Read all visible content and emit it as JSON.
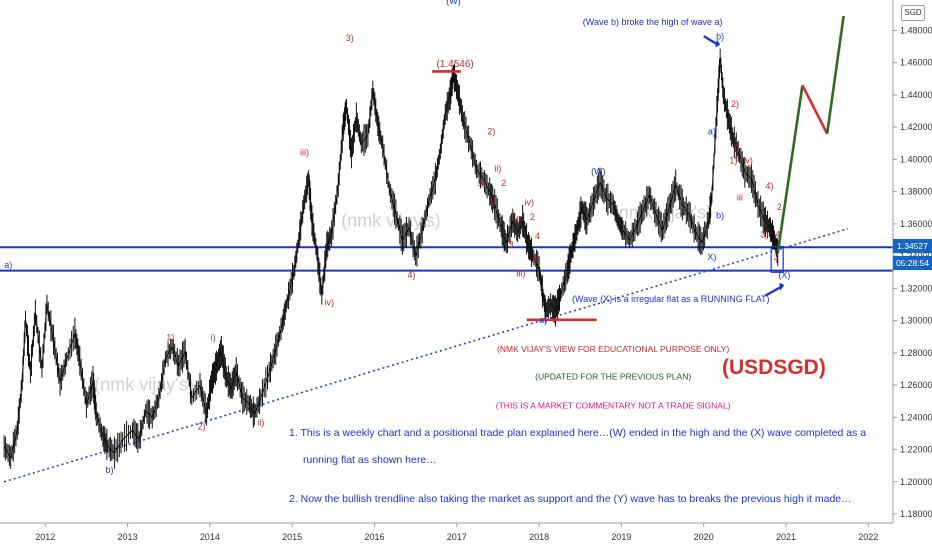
{
  "chart_data": {
    "type": "line",
    "title": "(USDSGD)",
    "currency_badge": "SGD",
    "xlabel": "",
    "ylabel": "",
    "grid": false,
    "ylim": [
      1.17,
      1.505
    ],
    "yticks": [
      "1.48000",
      "1.46000",
      "1.44000",
      "1.42000",
      "1.40000",
      "1.38000",
      "1.36000",
      "1.34000",
      "1.32000",
      "1.30000",
      "1.28000",
      "1.26000",
      "1.24000",
      "1.22000",
      "1.20000",
      "1.18000"
    ],
    "xlim": [
      2011.45,
      2022.3
    ],
    "xticks": [
      "2012",
      "2013",
      "2014",
      "2015",
      "2016",
      "2017",
      "2018",
      "2019",
      "2020",
      "2021",
      "2022"
    ],
    "price_labels": {
      "current": "1.34527",
      "countdown": "05:28:54"
    },
    "series": [
      {
        "values": [
          [
            2011.5,
            1.222
          ],
          [
            2011.58,
            1.215
          ],
          [
            2011.66,
            1.232
          ],
          [
            2011.72,
            1.262
          ],
          [
            2011.76,
            1.301
          ],
          [
            2011.82,
            1.268
          ],
          [
            2011.88,
            1.305
          ],
          [
            2011.96,
            1.27
          ],
          [
            2012.02,
            1.31
          ],
          [
            2012.1,
            1.288
          ],
          [
            2012.18,
            1.262
          ],
          [
            2012.26,
            1.276
          ],
          [
            2012.36,
            1.292
          ],
          [
            2012.42,
            1.275
          ],
          [
            2012.5,
            1.248
          ],
          [
            2012.58,
            1.262
          ],
          [
            2012.62,
            1.242
          ],
          [
            2012.7,
            1.228
          ],
          [
            2012.76,
            1.222
          ],
          [
            2012.84,
            1.218
          ],
          [
            2012.94,
            1.226
          ],
          [
            2013.06,
            1.232
          ],
          [
            2013.14,
            1.226
          ],
          [
            2013.22,
            1.244
          ],
          [
            2013.3,
            1.24
          ],
          [
            2013.38,
            1.252
          ],
          [
            2013.46,
            1.276
          ],
          [
            2013.54,
            1.284
          ],
          [
            2013.62,
            1.272
          ],
          [
            2013.7,
            1.281
          ],
          [
            2013.78,
            1.252
          ],
          [
            2013.88,
            1.26
          ],
          [
            2013.96,
            1.242
          ],
          [
            2014.02,
            1.262
          ],
          [
            2014.08,
            1.272
          ],
          [
            2014.14,
            1.281
          ],
          [
            2014.2,
            1.265
          ],
          [
            2014.26,
            1.258
          ],
          [
            2014.32,
            1.268
          ],
          [
            2014.4,
            1.252
          ],
          [
            2014.48,
            1.248
          ],
          [
            2014.54,
            1.242
          ],
          [
            2014.62,
            1.252
          ],
          [
            2014.72,
            1.268
          ],
          [
            2014.8,
            1.282
          ],
          [
            2014.88,
            1.298
          ],
          [
            2014.94,
            1.312
          ],
          [
            2015.02,
            1.33
          ],
          [
            2015.08,
            1.35
          ],
          [
            2015.14,
            1.372
          ],
          [
            2015.2,
            1.388
          ],
          [
            2015.24,
            1.362
          ],
          [
            2015.3,
            1.342
          ],
          [
            2015.36,
            1.316
          ],
          [
            2015.42,
            1.346
          ],
          [
            2015.48,
            1.354
          ],
          [
            2015.56,
            1.384
          ],
          [
            2015.62,
            1.42
          ],
          [
            2015.66,
            1.433
          ],
          [
            2015.72,
            1.404
          ],
          [
            2015.78,
            1.426
          ],
          [
            2015.84,
            1.41
          ],
          [
            2015.92,
            1.415
          ],
          [
            2015.98,
            1.443
          ],
          [
            2016.04,
            1.422
          ],
          [
            2016.1,
            1.408
          ],
          [
            2016.18,
            1.382
          ],
          [
            2016.26,
            1.366
          ],
          [
            2016.34,
            1.35
          ],
          [
            2016.42,
            1.358
          ],
          [
            2016.5,
            1.34
          ],
          [
            2016.58,
            1.356
          ],
          [
            2016.66,
            1.374
          ],
          [
            2016.74,
            1.388
          ],
          [
            2016.8,
            1.405
          ],
          [
            2016.86,
            1.428
          ],
          [
            2016.92,
            1.44
          ],
          [
            2016.96,
            1.453
          ],
          [
            2017.02,
            1.44
          ],
          [
            2017.08,
            1.424
          ],
          [
            2017.16,
            1.41
          ],
          [
            2017.24,
            1.394
          ],
          [
            2017.32,
            1.388
          ],
          [
            2017.4,
            1.38
          ],
          [
            2017.46,
            1.372
          ],
          [
            2017.54,
            1.358
          ],
          [
            2017.6,
            1.348
          ],
          [
            2017.68,
            1.362
          ],
          [
            2017.74,
            1.355
          ],
          [
            2017.8,
            1.362
          ],
          [
            2017.86,
            1.348
          ],
          [
            2017.92,
            1.341
          ],
          [
            2018.0,
            1.332
          ],
          [
            2018.04,
            1.318
          ],
          [
            2018.08,
            1.306
          ],
          [
            2018.14,
            1.31
          ],
          [
            2018.2,
            1.306
          ],
          [
            2018.26,
            1.316
          ],
          [
            2018.34,
            1.33
          ],
          [
            2018.4,
            1.344
          ],
          [
            2018.46,
            1.356
          ],
          [
            2018.52,
            1.37
          ],
          [
            2018.58,
            1.362
          ],
          [
            2018.66,
            1.374
          ],
          [
            2018.74,
            1.386
          ],
          [
            2018.82,
            1.376
          ],
          [
            2018.9,
            1.372
          ],
          [
            2018.96,
            1.362
          ],
          [
            2019.02,
            1.356
          ],
          [
            2019.1,
            1.35
          ],
          [
            2019.18,
            1.358
          ],
          [
            2019.26,
            1.368
          ],
          [
            2019.34,
            1.378
          ],
          [
            2019.42,
            1.366
          ],
          [
            2019.5,
            1.356
          ],
          [
            2019.58,
            1.37
          ],
          [
            2019.66,
            1.384
          ],
          [
            2019.74,
            1.372
          ],
          [
            2019.82,
            1.366
          ],
          [
            2019.9,
            1.355
          ],
          [
            2019.98,
            1.348
          ],
          [
            2020.06,
            1.362
          ],
          [
            2020.1,
            1.378
          ],
          [
            2020.16,
            1.43
          ],
          [
            2020.2,
            1.463
          ],
          [
            2020.24,
            1.44
          ],
          [
            2020.3,
            1.425
          ],
          [
            2020.36,
            1.412
          ],
          [
            2020.42,
            1.405
          ],
          [
            2020.5,
            1.392
          ],
          [
            2020.58,
            1.388
          ],
          [
            2020.66,
            1.372
          ],
          [
            2020.74,
            1.362
          ],
          [
            2020.8,
            1.358
          ],
          [
            2020.86,
            1.35
          ],
          [
            2020.9,
            1.342
          ]
        ]
      }
    ],
    "projection": [
      [
        2020.9,
        1.342
      ],
      [
        2021.2,
        1.446
      ],
      [
        2021.5,
        1.416
      ],
      [
        2021.7,
        1.489
      ]
    ],
    "trendline": [
      [
        2011.5,
        1.2
      ],
      [
        2021.75,
        1.357
      ]
    ],
    "support_lines": [
      1.3455,
      1.331
    ],
    "resistance_marks": [
      {
        "y": 1.4546,
        "from": 2016.7,
        "to": 2017.05,
        "label": "(1.4546)"
      },
      {
        "y": 1.3005,
        "from": 2017.85,
        "to": 2018.7,
        "label": ""
      }
    ],
    "wave_labels": [
      {
        "text": "a)",
        "x": 2011.55,
        "y": 1.3325,
        "color": "#1a35c9"
      },
      {
        "text": "b)",
        "x": 2012.78,
        "y": 1.2055,
        "color": "#1a35c9"
      },
      {
        "text": "1)",
        "x": 2013.52,
        "y": 1.2875,
        "color": "#c62828"
      },
      {
        "text": "2)",
        "x": 2013.9,
        "y": 1.2325,
        "color": "#c62828"
      },
      {
        "text": "i)",
        "x": 2014.04,
        "y": 1.2875,
        "color": "#c62828"
      },
      {
        "text": "ii)",
        "x": 2014.62,
        "y": 1.235,
        "color": "#c62828"
      },
      {
        "text": "iii)",
        "x": 2015.15,
        "y": 1.4025,
        "color": "#c62828"
      },
      {
        "text": "iv)",
        "x": 2015.45,
        "y": 1.3095,
        "color": "#c62828"
      },
      {
        "text": "3)",
        "x": 2015.7,
        "y": 1.4735,
        "color": "#c62828"
      },
      {
        "text": "4)",
        "x": 2016.45,
        "y": 1.3265,
        "color": "#c62828"
      },
      {
        "text": "(W)",
        "x": 2016.96,
        "y": 1.4965,
        "color": "#1a35c9"
      },
      {
        "text": "2)",
        "x": 2017.42,
        "y": 1.4155,
        "color": "#c62828"
      },
      {
        "text": "ii)",
        "x": 2017.5,
        "y": 1.3925,
        "color": "#c62828"
      },
      {
        "text": "1)",
        "x": 2017.3,
        "y": 1.3835,
        "color": "#c62828"
      },
      {
        "text": "2",
        "x": 2017.57,
        "y": 1.3835,
        "color": "#c62828"
      },
      {
        "text": "i)",
        "x": 2017.44,
        "y": 1.3725,
        "color": "#c62828"
      },
      {
        "text": "iv)",
        "x": 2017.88,
        "y": 1.3715,
        "color": "#c62828"
      },
      {
        "text": "4",
        "x": 2017.73,
        "y": 1.3605,
        "color": "#c62828"
      },
      {
        "text": "2",
        "x": 2017.92,
        "y": 1.3625,
        "color": "#c62828"
      },
      {
        "text": "3",
        "x": 2017.66,
        "y": 1.3455,
        "color": "#c62828"
      },
      {
        "text": "4",
        "x": 2017.98,
        "y": 1.3505,
        "color": "#c62828"
      },
      {
        "text": "3",
        "x": 2017.96,
        "y": 1.3365,
        "color": "#c62828"
      },
      {
        "text": "iii)",
        "x": 2017.78,
        "y": 1.3275,
        "color": "#c62828"
      },
      {
        "text": "a)",
        "x": 2018.05,
        "y": 1.2985,
        "color": "#1a35c9"
      },
      {
        "text": "(W)",
        "x": 2018.72,
        "y": 1.3905,
        "color": "#1a35c9"
      },
      {
        "text": "b)",
        "x": 2020.2,
        "y": 1.4745,
        "color": "#1a35c9"
      },
      {
        "text": "a)",
        "x": 2020.1,
        "y": 1.4155,
        "color": "#1a35c9"
      },
      {
        "text": "b)",
        "x": 2020.2,
        "y": 1.3635,
        "color": "#1a35c9"
      },
      {
        "text": "2)",
        "x": 2020.38,
        "y": 1.4325,
        "color": "#c62828"
      },
      {
        "text": "i)",
        "x": 2020.4,
        "y": 1.4055,
        "color": "#c62828"
      },
      {
        "text": "1)",
        "x": 2020.36,
        "y": 1.3975,
        "color": "#c62828"
      },
      {
        "text": "iv)",
        "x": 2020.54,
        "y": 1.3975,
        "color": "#c62828"
      },
      {
        "text": "iii",
        "x": 2020.44,
        "y": 1.3745,
        "color": "#c62828"
      },
      {
        "text": "4)",
        "x": 2020.8,
        "y": 1.3815,
        "color": "#c62828"
      },
      {
        "text": "2",
        "x": 2020.92,
        "y": 1.3685,
        "color": "#c62828"
      },
      {
        "text": "3)",
        "x": 2020.74,
        "y": 1.3515,
        "color": "#c62828"
      },
      {
        "text": "4",
        "x": 2020.9,
        "y": 1.3515,
        "color": "#c62828"
      },
      {
        "text": "3",
        "x": 2020.88,
        "y": 1.3375,
        "color": "#c62828"
      },
      {
        "text": "X)",
        "x": 2020.1,
        "y": 1.3375,
        "color": "#1a35c9"
      },
      {
        "text": "(X)",
        "x": 2020.98,
        "y": 1.3265,
        "color": "#1a35c9"
      }
    ],
    "annotations": [
      {
        "text": "(Wave b) broke the high of wave a)",
        "x": 2019.38,
        "y": 1.4835,
        "color": "#1a35c9",
        "size": 9
      },
      {
        "text": "(Wave (X) is a irregular flat as a RUNNING FLAT)",
        "x": 2019.6,
        "y": 1.3115,
        "color": "#1a35c9",
        "size": 9
      },
      {
        "text": "(NMK VIJAY'S VIEW FOR EDUCATIONAL PURPOSE ONLY)",
        "x": 2018.9,
        "y": 1.2805,
        "color": "#c62828",
        "size": 8.5
      },
      {
        "text": "(UPDATED FOR THE PREVIOUS PLAN)",
        "x": 2018.9,
        "y": 1.2635,
        "color": "#1b5e20",
        "size": 8.5
      },
      {
        "text": "(THIS IS A MARKET COMMENTARY NOT A TRADE SIGNAL)",
        "x": 2018.9,
        "y": 1.2455,
        "color": "#d81b7a",
        "size": 8.5
      },
      {
        "text": "(1.4546)",
        "x": 2016.98,
        "y": 1.4575,
        "color": "#c62828",
        "size": 10
      }
    ],
    "notes": [
      "1. This is a weekly chart and a positional trade plan explained here…(W) ended in the high and the (X) wave completed as a",
      "running flat as shown here…",
      "2. Now the bullish trendline also taking the market as support and the (Y) wave has to breaks the previous high it made…"
    ],
    "watermarks": [
      "(nmk vijay's)",
      "(nmk vijay's)",
      "(nmk vijay's)"
    ]
  }
}
